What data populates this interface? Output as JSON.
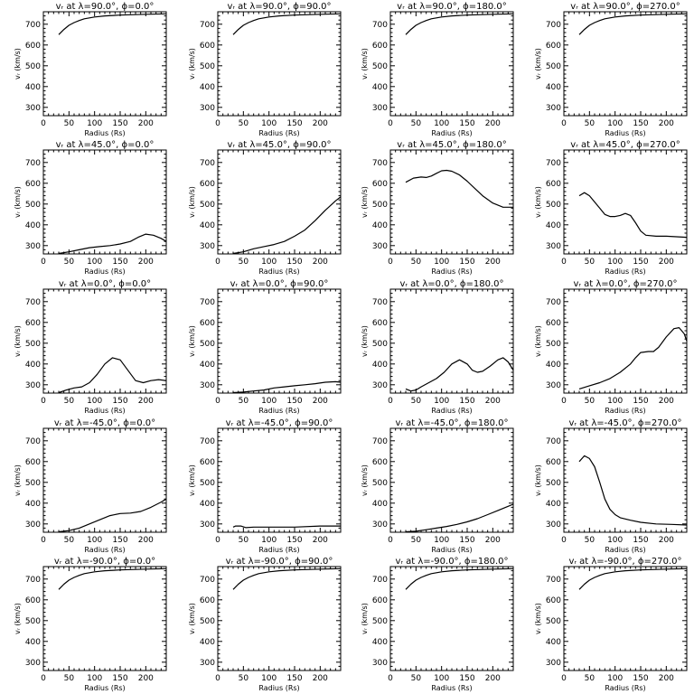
{
  "figure": {
    "background": "#ffffff",
    "line_color": "#000000"
  },
  "chart_data": [
    {
      "type": "line",
      "title": "vᵣ at λ=90.0°, ϕ=0.0°",
      "xlabel": "Radius (Rs)",
      "ylabel": "vᵣ (km/s)",
      "xlim": [
        0,
        240
      ],
      "ylim": [
        260,
        760
      ],
      "xticks": [
        "0",
        "50",
        "100",
        "150",
        "200"
      ],
      "yticks": [
        "300",
        "400",
        "500",
        "600",
        "700"
      ],
      "series": [
        {
          "x": [
            30,
            40,
            50,
            60,
            70,
            80,
            100,
            120,
            150,
            200,
            240
          ],
          "y": [
            650,
            675,
            695,
            708,
            718,
            726,
            735,
            740,
            744,
            748,
            750
          ]
        }
      ]
    },
    {
      "type": "line",
      "title": "vᵣ at λ=90.0°, ϕ=90.0°",
      "xlabel": "Radius (Rs)",
      "ylabel": "vᵣ (km/s)",
      "xlim": [
        0,
        240
      ],
      "ylim": [
        260,
        760
      ],
      "xticks": [
        "0",
        "50",
        "100",
        "150",
        "200"
      ],
      "yticks": [
        "300",
        "400",
        "500",
        "600",
        "700"
      ],
      "series": [
        {
          "x": [
            30,
            40,
            50,
            60,
            70,
            80,
            100,
            120,
            150,
            200,
            240
          ],
          "y": [
            650,
            675,
            695,
            708,
            718,
            726,
            735,
            740,
            744,
            748,
            750
          ]
        }
      ]
    },
    {
      "type": "line",
      "title": "vᵣ at λ=90.0°, ϕ=180.0°",
      "xlabel": "Radius (Rs)",
      "ylabel": "vᵣ (km/s)",
      "xlim": [
        0,
        240
      ],
      "ylim": [
        260,
        760
      ],
      "xticks": [
        "0",
        "50",
        "100",
        "150",
        "200"
      ],
      "yticks": [
        "300",
        "400",
        "500",
        "600",
        "700"
      ],
      "series": [
        {
          "x": [
            30,
            40,
            50,
            60,
            70,
            80,
            100,
            120,
            150,
            200,
            240
          ],
          "y": [
            650,
            675,
            695,
            708,
            718,
            726,
            735,
            740,
            744,
            748,
            750
          ]
        }
      ]
    },
    {
      "type": "line",
      "title": "vᵣ at λ=90.0°, ϕ=270.0°",
      "xlabel": "Radius (Rs)",
      "ylabel": "vᵣ (km/s)",
      "xlim": [
        0,
        240
      ],
      "ylim": [
        260,
        760
      ],
      "xticks": [
        "0",
        "50",
        "100",
        "150",
        "200"
      ],
      "yticks": [
        "300",
        "400",
        "500",
        "600",
        "700"
      ],
      "series": [
        {
          "x": [
            30,
            40,
            50,
            60,
            70,
            80,
            100,
            120,
            150,
            200,
            240
          ],
          "y": [
            650,
            675,
            695,
            708,
            718,
            726,
            735,
            740,
            744,
            748,
            750
          ]
        }
      ]
    },
    {
      "type": "line",
      "title": "vᵣ at λ=45.0°, ϕ=0.0°",
      "xlabel": "Radius (Rs)",
      "ylabel": "vᵣ (km/s)",
      "xlim": [
        0,
        240
      ],
      "ylim": [
        260,
        760
      ],
      "xticks": [
        "0",
        "50",
        "100",
        "150",
        "200"
      ],
      "yticks": [
        "300",
        "400",
        "500",
        "600",
        "700"
      ],
      "series": [
        {
          "x": [
            30,
            50,
            70,
            90,
            110,
            130,
            150,
            170,
            185,
            200,
            215,
            230,
            240
          ],
          "y": [
            262,
            270,
            280,
            290,
            295,
            300,
            308,
            320,
            340,
            355,
            350,
            335,
            320
          ]
        }
      ]
    },
    {
      "type": "line",
      "title": "vᵣ at λ=45.0°, ϕ=90.0°",
      "xlabel": "Radius (Rs)",
      "ylabel": "vᵣ (km/s)",
      "xlim": [
        0,
        240
      ],
      "ylim": [
        260,
        760
      ],
      "xticks": [
        "0",
        "50",
        "100",
        "150",
        "200"
      ],
      "yticks": [
        "300",
        "400",
        "500",
        "600",
        "700"
      ],
      "series": [
        {
          "x": [
            30,
            50,
            70,
            90,
            110,
            130,
            150,
            170,
            190,
            210,
            230,
            240
          ],
          "y": [
            262,
            270,
            285,
            295,
            305,
            320,
            345,
            375,
            420,
            470,
            515,
            535
          ]
        }
      ]
    },
    {
      "type": "line",
      "title": "vᵣ at λ=45.0°, ϕ=180.0°",
      "xlabel": "Radius (Rs)",
      "ylabel": "vᵣ (km/s)",
      "xlim": [
        0,
        240
      ],
      "ylim": [
        260,
        760
      ],
      "xticks": [
        "0",
        "50",
        "100",
        "150",
        "200"
      ],
      "yticks": [
        "300",
        "400",
        "500",
        "600",
        "700"
      ],
      "series": [
        {
          "x": [
            30,
            45,
            60,
            70,
            80,
            90,
            100,
            110,
            120,
            135,
            150,
            165,
            180,
            200,
            220,
            240
          ],
          "y": [
            605,
            625,
            630,
            628,
            635,
            648,
            660,
            662,
            658,
            640,
            610,
            575,
            540,
            505,
            485,
            485
          ]
        }
      ]
    },
    {
      "type": "line",
      "title": "vᵣ at λ=45.0°, ϕ=270.0°",
      "xlabel": "Radius (Rs)",
      "ylabel": "vᵣ (km/s)",
      "xlim": [
        0,
        240
      ],
      "ylim": [
        260,
        760
      ],
      "xticks": [
        "0",
        "50",
        "100",
        "150",
        "200"
      ],
      "yticks": [
        "300",
        "400",
        "500",
        "600",
        "700"
      ],
      "series": [
        {
          "x": [
            30,
            40,
            50,
            60,
            70,
            80,
            90,
            100,
            110,
            120,
            130,
            140,
            150,
            160,
            180,
            200,
            240
          ],
          "y": [
            540,
            555,
            540,
            510,
            480,
            450,
            440,
            440,
            445,
            455,
            445,
            410,
            370,
            350,
            345,
            345,
            340
          ]
        }
      ]
    },
    {
      "type": "line",
      "title": "vᵣ at λ=0.0°, ϕ=0.0°",
      "xlabel": "Radius (Rs)",
      "ylabel": "vᵣ (km/s)",
      "xlim": [
        0,
        240
      ],
      "ylim": [
        260,
        760
      ],
      "xticks": [
        "0",
        "50",
        "100",
        "150",
        "200"
      ],
      "yticks": [
        "300",
        "400",
        "500",
        "600",
        "700"
      ],
      "series": [
        {
          "x": [
            30,
            45,
            60,
            75,
            90,
            105,
            120,
            135,
            150,
            165,
            180,
            195,
            210,
            225,
            240
          ],
          "y": [
            262,
            275,
            285,
            290,
            310,
            350,
            400,
            430,
            420,
            370,
            320,
            310,
            320,
            325,
            320
          ]
        }
      ]
    },
    {
      "type": "line",
      "title": "vᵣ at λ=0.0°, ϕ=90.0°",
      "xlabel": "Radius (Rs)",
      "ylabel": "vᵣ (km/s)",
      "xlim": [
        0,
        240
      ],
      "ylim": [
        260,
        760
      ],
      "xticks": [
        "0",
        "50",
        "100",
        "150",
        "200"
      ],
      "yticks": [
        "300",
        "400",
        "500",
        "600",
        "700"
      ],
      "series": [
        {
          "x": [
            30,
            50,
            70,
            90,
            110,
            130,
            150,
            170,
            190,
            210,
            230,
            240
          ],
          "y": [
            262,
            265,
            270,
            275,
            285,
            290,
            295,
            300,
            305,
            312,
            315,
            312
          ]
        }
      ]
    },
    {
      "type": "line",
      "title": "vᵣ at λ=0.0°, ϕ=180.0°",
      "xlabel": "Radius (Rs)",
      "ylabel": "vᵣ (km/s)",
      "xlim": [
        0,
        240
      ],
      "ylim": [
        260,
        760
      ],
      "xticks": [
        "0",
        "50",
        "100",
        "150",
        "200"
      ],
      "yticks": [
        "300",
        "400",
        "500",
        "600",
        "700"
      ],
      "series": [
        {
          "x": [
            30,
            40,
            50,
            60,
            75,
            90,
            105,
            120,
            135,
            150,
            160,
            170,
            180,
            195,
            210,
            220,
            230,
            240
          ],
          "y": [
            280,
            270,
            275,
            290,
            310,
            330,
            360,
            400,
            420,
            400,
            370,
            360,
            365,
            390,
            420,
            430,
            410,
            370
          ]
        }
      ]
    },
    {
      "type": "line",
      "title": "vᵣ at λ=0.0°, ϕ=270.0°",
      "xlabel": "Radius (Rs)",
      "ylabel": "vᵣ (km/s)",
      "xlim": [
        0,
        240
      ],
      "ylim": [
        260,
        760
      ],
      "xticks": [
        "0",
        "50",
        "100",
        "150",
        "200"
      ],
      "yticks": [
        "300",
        "400",
        "500",
        "600",
        "700"
      ],
      "series": [
        {
          "x": [
            30,
            50,
            70,
            90,
            110,
            130,
            140,
            150,
            165,
            175,
            185,
            200,
            215,
            225,
            235,
            240
          ],
          "y": [
            280,
            295,
            310,
            330,
            360,
            400,
            430,
            455,
            460,
            460,
            480,
            530,
            570,
            575,
            545,
            510
          ]
        }
      ]
    },
    {
      "type": "line",
      "title": "vᵣ at λ=-45.0°, ϕ=0.0°",
      "xlabel": "Radius (Rs)",
      "ylabel": "vᵣ (km/s)",
      "xlim": [
        0,
        240
      ],
      "ylim": [
        260,
        760
      ],
      "xticks": [
        "0",
        "50",
        "100",
        "150",
        "200"
      ],
      "yticks": [
        "300",
        "400",
        "500",
        "600",
        "700"
      ],
      "series": [
        {
          "x": [
            30,
            50,
            70,
            90,
            110,
            130,
            150,
            170,
            190,
            210,
            230,
            240
          ],
          "y": [
            262,
            268,
            280,
            300,
            320,
            340,
            350,
            352,
            360,
            380,
            405,
            420
          ]
        }
      ]
    },
    {
      "type": "line",
      "title": "vᵣ at λ=-45.0°, ϕ=90.0°",
      "xlabel": "Radius (Rs)",
      "ylabel": "vᵣ (km/s)",
      "xlim": [
        0,
        240
      ],
      "ylim": [
        260,
        760
      ],
      "xticks": [
        "0",
        "50",
        "100",
        "150",
        "200"
      ],
      "yticks": [
        "300",
        "400",
        "500",
        "600",
        "700"
      ],
      "series": [
        {
          "x": [
            30,
            35,
            45,
            55,
            70,
            100,
            150,
            200,
            240
          ],
          "y": [
            285,
            290,
            290,
            282,
            285,
            285,
            285,
            290,
            290
          ]
        }
      ]
    },
    {
      "type": "line",
      "title": "vᵣ at λ=-45.0°, ϕ=180.0°",
      "xlabel": "Radius (Rs)",
      "ylabel": "vᵣ (km/s)",
      "xlim": [
        0,
        240
      ],
      "ylim": [
        260,
        760
      ],
      "xticks": [
        "0",
        "50",
        "100",
        "150",
        "200"
      ],
      "yticks": [
        "300",
        "400",
        "500",
        "600",
        "700"
      ],
      "series": [
        {
          "x": [
            30,
            50,
            70,
            90,
            110,
            130,
            150,
            170,
            190,
            210,
            230,
            240
          ],
          "y": [
            262,
            265,
            272,
            280,
            288,
            298,
            310,
            325,
            345,
            365,
            385,
            395
          ]
        }
      ]
    },
    {
      "type": "line",
      "title": "vᵣ at λ=-45.0°, ϕ=270.0°",
      "xlabel": "Radius (Rs)",
      "ylabel": "vᵣ (km/s)",
      "xlim": [
        0,
        240
      ],
      "ylim": [
        260,
        760
      ],
      "xticks": [
        "0",
        "50",
        "100",
        "150",
        "200"
      ],
      "yticks": [
        "300",
        "400",
        "500",
        "600",
        "700"
      ],
      "series": [
        {
          "x": [
            30,
            40,
            50,
            60,
            70,
            80,
            90,
            100,
            110,
            130,
            150,
            180,
            210,
            240
          ],
          "y": [
            600,
            628,
            615,
            575,
            500,
            420,
            370,
            345,
            330,
            318,
            308,
            300,
            298,
            295
          ]
        }
      ]
    },
    {
      "type": "line",
      "title": "vᵣ at λ=-90.0°, ϕ=0.0°",
      "xlabel": "Radius (Rs)",
      "ylabel": "vᵣ (km/s)",
      "xlim": [
        0,
        240
      ],
      "ylim": [
        260,
        760
      ],
      "xticks": [
        "0",
        "50",
        "100",
        "150",
        "200"
      ],
      "yticks": [
        "300",
        "400",
        "500",
        "600",
        "700"
      ],
      "series": [
        {
          "x": [
            30,
            40,
            50,
            60,
            70,
            80,
            100,
            120,
            150,
            200,
            240
          ],
          "y": [
            650,
            675,
            695,
            708,
            718,
            726,
            735,
            740,
            744,
            748,
            750
          ]
        }
      ]
    },
    {
      "type": "line",
      "title": "vᵣ at λ=-90.0°, ϕ=90.0°",
      "xlabel": "Radius (Rs)",
      "ylabel": "vᵣ (km/s)",
      "xlim": [
        0,
        240
      ],
      "ylim": [
        260,
        760
      ],
      "xticks": [
        "0",
        "50",
        "100",
        "150",
        "200"
      ],
      "yticks": [
        "300",
        "400",
        "500",
        "600",
        "700"
      ],
      "series": [
        {
          "x": [
            30,
            40,
            50,
            60,
            70,
            80,
            100,
            120,
            150,
            200,
            240
          ],
          "y": [
            650,
            675,
            695,
            708,
            718,
            726,
            735,
            740,
            744,
            748,
            750
          ]
        }
      ]
    },
    {
      "type": "line",
      "title": "vᵣ at λ=-90.0°, ϕ=180.0°",
      "xlabel": "Radius (Rs)",
      "ylabel": "vᵣ (km/s)",
      "xlim": [
        0,
        240
      ],
      "ylim": [
        260,
        760
      ],
      "xticks": [
        "0",
        "50",
        "100",
        "150",
        "200"
      ],
      "yticks": [
        "300",
        "400",
        "500",
        "600",
        "700"
      ],
      "series": [
        {
          "x": [
            30,
            40,
            50,
            60,
            70,
            80,
            100,
            120,
            150,
            200,
            240
          ],
          "y": [
            650,
            675,
            695,
            708,
            718,
            726,
            735,
            740,
            744,
            748,
            750
          ]
        }
      ]
    },
    {
      "type": "line",
      "title": "vᵣ at λ=-90.0°, ϕ=270.0°",
      "xlabel": "Radius (Rs)",
      "ylabel": "vᵣ (km/s)",
      "xlim": [
        0,
        240
      ],
      "ylim": [
        260,
        760
      ],
      "xticks": [
        "0",
        "50",
        "100",
        "150",
        "200"
      ],
      "yticks": [
        "300",
        "400",
        "500",
        "600",
        "700"
      ],
      "series": [
        {
          "x": [
            30,
            40,
            50,
            60,
            70,
            80,
            100,
            120,
            150,
            200,
            240
          ],
          "y": [
            650,
            675,
            695,
            708,
            718,
            726,
            735,
            740,
            744,
            748,
            750
          ]
        }
      ]
    }
  ]
}
